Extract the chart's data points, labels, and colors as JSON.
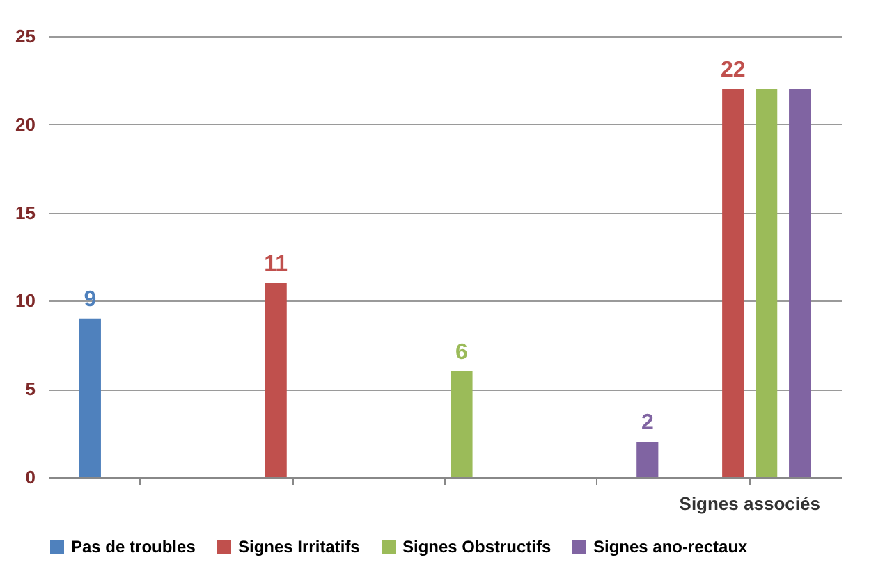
{
  "chart_data": {
    "type": "bar",
    "categories": [
      null,
      null,
      null,
      null,
      "Signes associés"
    ],
    "series": [
      {
        "name": "Pas de troubles",
        "color": "#4f81bd",
        "values": [
          9,
          0,
          0,
          0,
          0
        ],
        "value_labels": [
          "9",
          null,
          null,
          null,
          null
        ]
      },
      {
        "name": "Signes Irritatifs",
        "color": "#c0504d",
        "values": [
          0,
          11,
          0,
          0,
          22
        ],
        "value_labels": [
          null,
          "11",
          null,
          null,
          "22"
        ]
      },
      {
        "name": "Signes Obstructifs",
        "color": "#9bbb59",
        "values": [
          0,
          0,
          6,
          0,
          22
        ],
        "value_labels": [
          null,
          null,
          "6",
          null,
          null
        ]
      },
      {
        "name": "Signes ano-rectaux",
        "color": "#8064a2",
        "values": [
          0,
          0,
          0,
          2,
          22
        ],
        "value_labels": [
          null,
          null,
          null,
          "2",
          null
        ]
      }
    ],
    "ylim": [
      0,
      25
    ],
    "yticks": [
      0,
      5,
      10,
      15,
      20,
      25
    ],
    "grid": "y",
    "legend": "bottom"
  }
}
